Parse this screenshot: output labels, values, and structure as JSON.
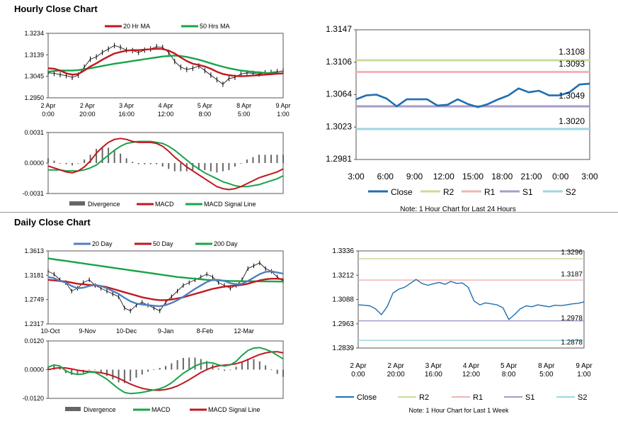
{
  "sections": {
    "hourly_title": "Hourly Close Chart",
    "daily_title": "Daily Close Chart"
  },
  "colors": {
    "close": "#1f6fb0",
    "red": "#c0181e",
    "green": "#1aa34a",
    "blue_ma": "#4f7fc0",
    "r2": "#c8dc9a",
    "r1": "#f2b3b3",
    "s1": "#a79cc8",
    "s2": "#9fd6e0",
    "divergence": "#666666"
  },
  "chart_data": [
    {
      "id": "hourly_price",
      "type": "line",
      "legend": [
        "20 Hr MA",
        "50 Hrs MA"
      ],
      "x_ticks": [
        [
          "2 Apr",
          "0:00"
        ],
        [
          "2 Apr",
          "20:00"
        ],
        [
          "3 Apr",
          "16:00"
        ],
        [
          "4 Apr",
          "12:00"
        ],
        [
          "5 Apr",
          "8:00"
        ],
        [
          "8 Apr",
          "5:00"
        ],
        [
          "9 Apr",
          "1:00"
        ]
      ],
      "y_ticks": [
        "1.3234",
        "1.3139",
        "1.3045",
        "1.2950"
      ],
      "ylim": [
        1.295,
        1.3234
      ],
      "series": [
        {
          "name": "Close",
          "values": [
            1.306,
            1.3058,
            1.3052,
            1.3048,
            1.304,
            1.305,
            1.3085,
            1.312,
            1.313,
            1.315,
            1.3165,
            1.318,
            1.3172,
            1.316,
            1.3158,
            1.315,
            1.316,
            1.3165,
            1.3175,
            1.3172,
            1.315,
            1.311,
            1.3085,
            1.3075,
            1.308,
            1.309,
            1.307,
            1.305,
            1.303,
            1.301,
            1.3035,
            1.304,
            1.3055,
            1.306,
            1.3058,
            1.3055,
            1.306,
            1.3062,
            1.3065,
            1.3068
          ]
        },
        {
          "name": "20 Hr MA",
          "values": [
            1.308,
            1.3078,
            1.307,
            1.3058,
            1.3052,
            1.3055,
            1.307,
            1.3088,
            1.3102,
            1.3118,
            1.3132,
            1.3145,
            1.3152,
            1.3158,
            1.316,
            1.316,
            1.3162,
            1.3164,
            1.3166,
            1.3165,
            1.3158,
            1.3145,
            1.3128,
            1.3112,
            1.31,
            1.3095,
            1.3088,
            1.3078,
            1.3065,
            1.3055,
            1.305,
            1.3046,
            1.3045,
            1.3046,
            1.3048,
            1.305,
            1.3052,
            1.3054,
            1.3056,
            1.3058
          ]
        },
        {
          "name": "50 Hrs MA",
          "values": [
            1.3065,
            1.3068,
            1.307,
            1.307,
            1.307,
            1.3072,
            1.3076,
            1.308,
            1.3085,
            1.309,
            1.3095,
            1.31,
            1.3104,
            1.3108,
            1.3112,
            1.3116,
            1.312,
            1.3124,
            1.3128,
            1.3132,
            1.3134,
            1.3136,
            1.3134,
            1.313,
            1.3124,
            1.3118,
            1.311,
            1.3102,
            1.3094,
            1.3087,
            1.308,
            1.3075,
            1.307,
            1.3067,
            1.3064,
            1.3062,
            1.306,
            1.3059,
            1.3058,
            1.3058
          ]
        }
      ]
    },
    {
      "id": "hourly_macd",
      "type": "line",
      "legend": [
        "Divergence",
        "MACD",
        "MACD Signal Line"
      ],
      "y_ticks": [
        "0.0031",
        "0.0000",
        "-0.0031"
      ],
      "ylim": [
        -0.0031,
        0.0031
      ],
      "series": [
        {
          "name": "MACD",
          "values": [
            -0.0003,
            -0.0005,
            -0.0007,
            -0.0009,
            -0.001,
            -0.0008,
            -0.0004,
            0.0002,
            0.001,
            0.0016,
            0.0021,
            0.0024,
            0.0025,
            0.0024,
            0.0022,
            0.0021,
            0.0021,
            0.0021,
            0.002,
            0.0017,
            0.0012,
            0.0006,
            0.0001,
            -0.0004,
            -0.0008,
            -0.0012,
            -0.0016,
            -0.002,
            -0.0024,
            -0.0026,
            -0.0027,
            -0.0026,
            -0.0024,
            -0.0021,
            -0.0018,
            -0.0015,
            -0.0013,
            -0.0011,
            -0.0009,
            -0.0006
          ]
        },
        {
          "name": "MACD Signal Line",
          "values": [
            -0.0007,
            -0.0007,
            -0.0007,
            -0.0008,
            -0.0008,
            -0.0008,
            -0.0007,
            -0.0005,
            -0.0002,
            0.0003,
            0.0008,
            0.0013,
            0.0017,
            0.002,
            0.0021,
            0.0022,
            0.0022,
            0.0022,
            0.0021,
            0.002,
            0.0017,
            0.0013,
            0.0008,
            0.0003,
            -0.0002,
            -0.0006,
            -0.001,
            -0.0013,
            -0.0016,
            -0.0019,
            -0.0021,
            -0.0023,
            -0.0024,
            -0.0024,
            -0.0023,
            -0.0022,
            -0.002,
            -0.0018,
            -0.0016,
            -0.0013
          ]
        }
      ]
    },
    {
      "id": "hourly_24h",
      "type": "line",
      "note": "Note: 1 Hour Chart for Last 24 Hours",
      "legend": [
        "Close",
        "R2",
        "R1",
        "S1",
        "S2"
      ],
      "x_ticks": [
        "3:00",
        "6:00",
        "9:00",
        "12:00",
        "15:00",
        "18:00",
        "21:00",
        "0:00",
        "3:00"
      ],
      "y_ticks": [
        "1.3147",
        "1.3106",
        "1.3064",
        "1.3023",
        "1.2981"
      ],
      "ylim": [
        1.2981,
        1.3147
      ],
      "levels": {
        "R2": 1.3108,
        "R1": 1.3093,
        "S1": 1.3049,
        "S2": 1.302
      },
      "level_labels": {
        "R2": "1.3108",
        "R1": "1.3093",
        "S1": "1.3049",
        "S2": "1.3020"
      },
      "values": [
        1.3058,
        1.3063,
        1.3064,
        1.3059,
        1.3049,
        1.3058,
        1.3058,
        1.3058,
        1.305,
        1.3051,
        1.3058,
        1.3052,
        1.3048,
        1.3052,
        1.3058,
        1.3063,
        1.3072,
        1.3067,
        1.3069,
        1.3063,
        1.3063,
        1.3067,
        1.3077,
        1.3078
      ]
    },
    {
      "id": "daily_price",
      "type": "line",
      "legend": [
        "20 Day",
        "50 Day",
        "200 Day"
      ],
      "x_ticks": [
        "10-Oct",
        "9-Nov",
        "10-Dec",
        "9-Jan",
        "8-Feb",
        "12-Mar"
      ],
      "y_ticks": [
        "1.3613",
        "1.3181",
        "1.2749",
        "1.2317"
      ],
      "ylim": [
        1.2317,
        1.3613
      ],
      "series": [
        {
          "name": "Close",
          "values": [
            1.325,
            1.32,
            1.31,
            1.305,
            1.29,
            1.295,
            1.305,
            1.31,
            1.3,
            1.295,
            1.29,
            1.285,
            1.28,
            1.26,
            1.255,
            1.265,
            1.27,
            1.265,
            1.26,
            1.255,
            1.27,
            1.28,
            1.29,
            1.3,
            1.305,
            1.31,
            1.315,
            1.32,
            1.315,
            1.305,
            1.3,
            1.295,
            1.3,
            1.31,
            1.33,
            1.335,
            1.34,
            1.33,
            1.325,
            1.315,
            1.308
          ]
        },
        {
          "name": "20 Day",
          "values": [
            1.315,
            1.313,
            1.308,
            1.305,
            1.299,
            1.295,
            1.296,
            1.299,
            1.301,
            1.299,
            1.295,
            1.29,
            1.285,
            1.278,
            1.272,
            1.268,
            1.266,
            1.265,
            1.264,
            1.263,
            1.265,
            1.269,
            1.274,
            1.28,
            1.287,
            1.294,
            1.3,
            1.306,
            1.31,
            1.31,
            1.308,
            1.304,
            1.302,
            1.303,
            1.308,
            1.314,
            1.32,
            1.324,
            1.325,
            1.323,
            1.321
          ]
        },
        {
          "name": "50 Day",
          "values": [
            1.31,
            1.309,
            1.308,
            1.307,
            1.305,
            1.303,
            1.302,
            1.301,
            1.3,
            1.299,
            1.297,
            1.294,
            1.291,
            1.288,
            1.285,
            1.282,
            1.279,
            1.277,
            1.275,
            1.274,
            1.274,
            1.275,
            1.277,
            1.279,
            1.282,
            1.285,
            1.288,
            1.291,
            1.294,
            1.296,
            1.298,
            1.299,
            1.3,
            1.301,
            1.303,
            1.306,
            1.309,
            1.311,
            1.312,
            1.312,
            1.311
          ]
        },
        {
          "name": "200 Day",
          "values": [
            1.348,
            1.3465,
            1.345,
            1.3435,
            1.342,
            1.3405,
            1.339,
            1.3375,
            1.336,
            1.3345,
            1.333,
            1.3315,
            1.33,
            1.3285,
            1.327,
            1.3255,
            1.324,
            1.3225,
            1.321,
            1.3195,
            1.318,
            1.3165,
            1.315,
            1.314,
            1.313,
            1.312,
            1.311,
            1.31,
            1.3095,
            1.309,
            1.3085,
            1.308,
            1.3078,
            1.3076,
            1.3075,
            1.3074,
            1.3073,
            1.3072,
            1.3071,
            1.307,
            1.307
          ]
        }
      ]
    },
    {
      "id": "daily_macd",
      "type": "line",
      "legend": [
        "Divergence",
        "MACD",
        "MACD Signal Line"
      ],
      "y_ticks": [
        "0.0120",
        "0.0000",
        "-0.0120"
      ],
      "ylim": [
        -0.012,
        0.012
      ],
      "series": [
        {
          "name": "MACD",
          "values": [
            0.001,
            0.002,
            0.0015,
            -0.0005,
            -0.0015,
            -0.002,
            -0.0018,
            -0.001,
            -0.0012,
            -0.0025,
            -0.004,
            -0.006,
            -0.008,
            -0.0095,
            -0.01,
            -0.0098,
            -0.0095,
            -0.009,
            -0.0085,
            -0.008,
            -0.007,
            -0.0055,
            -0.0035,
            -0.0015,
            0.0,
            0.0015,
            0.0025,
            0.003,
            0.0028,
            0.002,
            0.0015,
            0.002,
            0.0035,
            0.006,
            0.008,
            0.009,
            0.0092,
            0.0085,
            0.0075,
            0.006,
            0.0045
          ]
        },
        {
          "name": "MACD Signal Line",
          "values": [
            0.0,
            0.0005,
            0.0008,
            0.0007,
            0.0003,
            -0.0002,
            -0.0006,
            -0.0008,
            -0.001,
            -0.0013,
            -0.0018,
            -0.0026,
            -0.0036,
            -0.0048,
            -0.006,
            -0.007,
            -0.0078,
            -0.0083,
            -0.0086,
            -0.0086,
            -0.0083,
            -0.0077,
            -0.0068,
            -0.0056,
            -0.0042,
            -0.0027,
            -0.0012,
            0.0,
            0.001,
            0.0016,
            0.0019,
            0.0021,
            0.0025,
            0.0032,
            0.0042,
            0.0053,
            0.0063,
            0.007,
            0.0074,
            0.0075,
            0.007
          ]
        }
      ]
    },
    {
      "id": "daily_week",
      "type": "line",
      "note": "Note: 1 Hour Chart for Last 1 Week",
      "legend": [
        "Close",
        "R2",
        "R1",
        "S1",
        "S2"
      ],
      "x_ticks": [
        [
          "2 Apr",
          "0:00"
        ],
        [
          "2 Apr",
          "20:00"
        ],
        [
          "3 Apr",
          "16:00"
        ],
        [
          "4 Apr",
          "12:00"
        ],
        [
          "5 Apr",
          "8:00"
        ],
        [
          "8 Apr",
          "5:00"
        ],
        [
          "9 Apr",
          "1:00"
        ]
      ],
      "y_ticks": [
        "1.3336",
        "1.3212",
        "1.3088",
        "1.2963",
        "1.2839"
      ],
      "ylim": [
        1.2839,
        1.3336
      ],
      "levels": {
        "R2": 1.3296,
        "R1": 1.3187,
        "S1": 1.2978,
        "S2": 1.2878
      },
      "level_labels": {
        "R2": "1.3296",
        "R1": "1.3187",
        "S1": "1.2978",
        "S2": "1.2878"
      },
      "values": [
        1.306,
        1.3058,
        1.3055,
        1.304,
        1.301,
        1.305,
        1.312,
        1.314,
        1.315,
        1.317,
        1.319,
        1.317,
        1.316,
        1.3168,
        1.3175,
        1.3165,
        1.318,
        1.317,
        1.3172,
        1.315,
        1.308,
        1.306,
        1.307,
        1.3065,
        1.306,
        1.3045,
        1.2985,
        1.301,
        1.304,
        1.3055,
        1.305,
        1.306,
        1.3055,
        1.305,
        1.3058,
        1.3056,
        1.306,
        1.3065,
        1.3068,
        1.3075
      ]
    }
  ]
}
